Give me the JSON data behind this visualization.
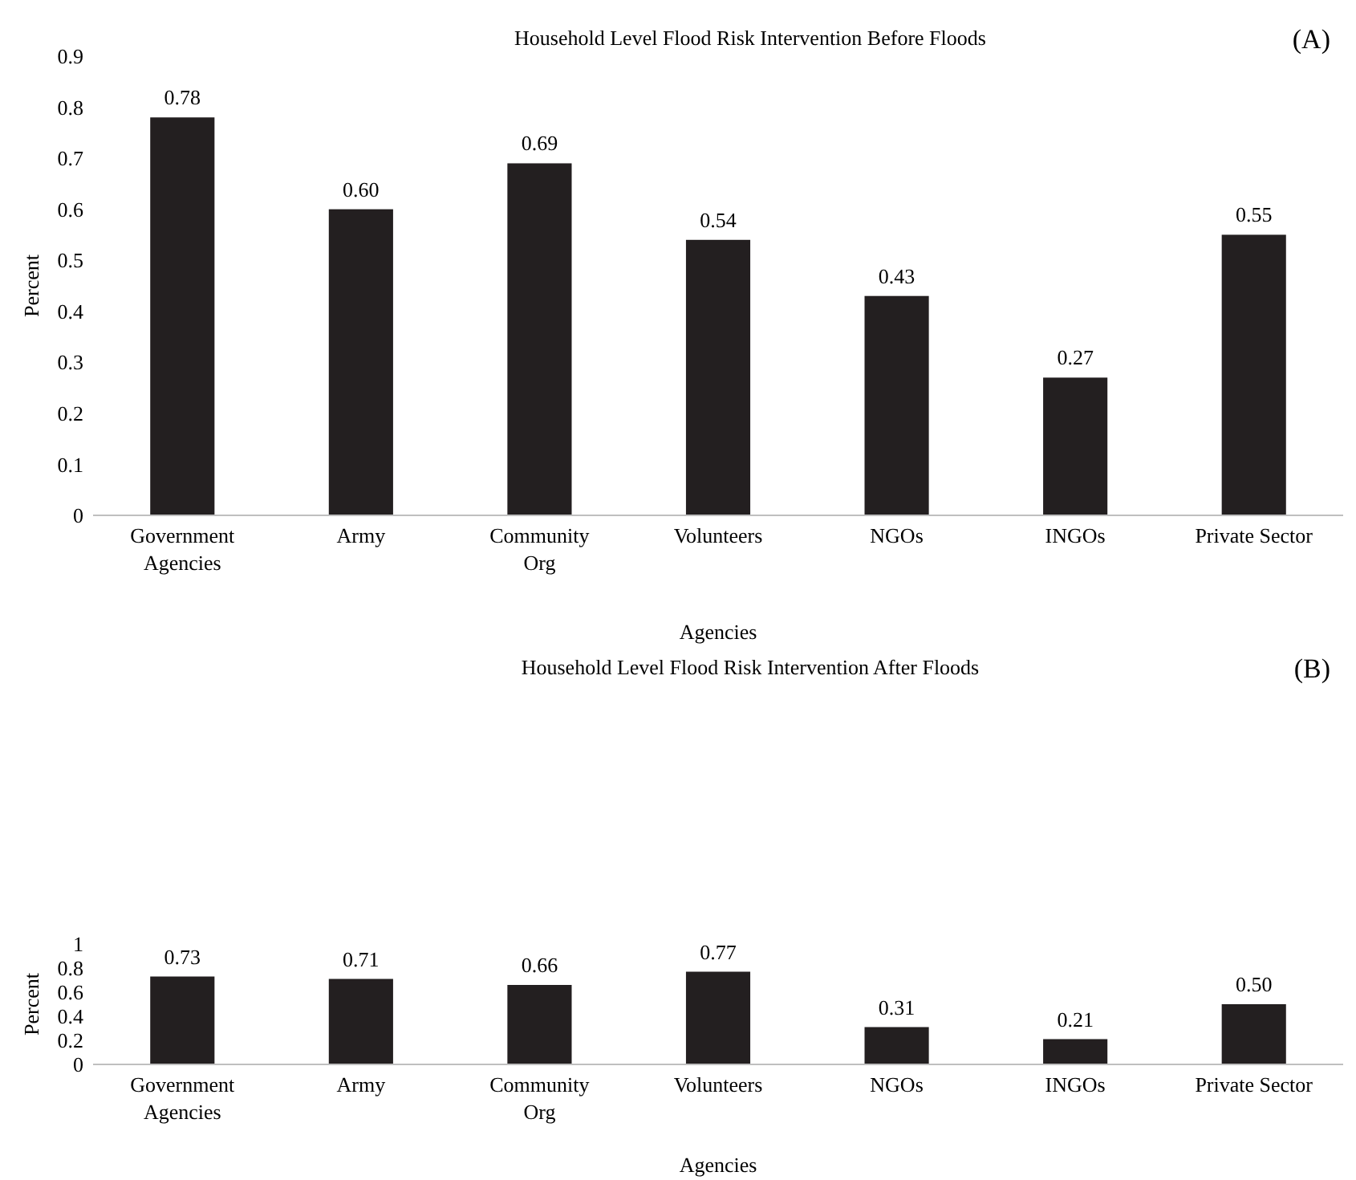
{
  "chart_data": [
    {
      "type": "bar",
      "title": "Household Level Flood Risk Intervention Before Floods",
      "annotations": [
        "(A)"
      ],
      "xlabel": "Agencies",
      "ylabel": "Percent",
      "categories": [
        "Government Agencies",
        "Army",
        "Community Org",
        "Volunteers",
        "NGOs",
        "INGOs",
        "Private Sector"
      ],
      "values": [
        0.78,
        0.6,
        0.69,
        0.54,
        0.43,
        0.27,
        0.55
      ],
      "value_labels": [
        "0.78",
        "0.60",
        "0.69",
        "0.54",
        "0.43",
        "0.27",
        "0.55"
      ],
      "color": "#231f20",
      "ylim": [
        0,
        0.9
      ],
      "yticks": [
        0,
        0.1,
        0.2,
        0.3,
        0.4,
        0.5,
        0.6,
        0.7,
        0.8,
        0.9
      ],
      "grid": false
    },
    {
      "type": "bar",
      "title": "Household Level Flood Risk Intervention After Floods",
      "annotations": [
        "(B)"
      ],
      "xlabel": "Agencies",
      "ylabel": "Percent",
      "categories": [
        "Government Agencies",
        "Army",
        "Community Org",
        "Volunteers",
        "NGOs",
        "INGOs",
        "Private Sector"
      ],
      "values": [
        0.73,
        0.71,
        0.66,
        0.77,
        0.31,
        0.21,
        0.5
      ],
      "value_labels": [
        "0.73",
        "0.71",
        "0.66",
        "0.77",
        "0.31",
        "0.21",
        "0.50"
      ],
      "color": "#231f20",
      "ylim": [
        0,
        1
      ],
      "yticks": [
        0,
        0.2,
        0.4,
        0.6,
        0.8,
        1
      ],
      "grid": false
    }
  ]
}
